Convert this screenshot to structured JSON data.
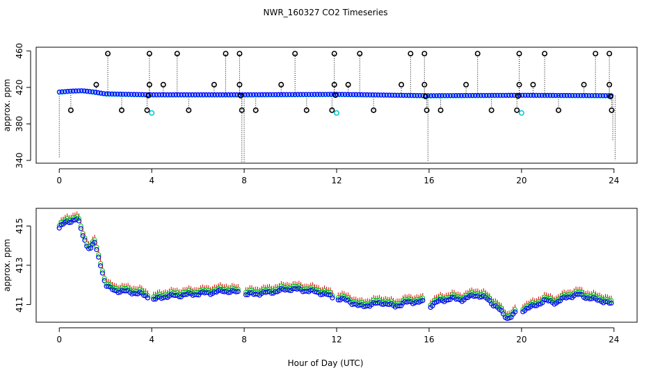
{
  "title": "NWR_160327  CO2 Timeseries",
  "xlabel": "Hour of Day (UTC)",
  "colors": {
    "axis": "#000000",
    "series_blue": "#0000ff",
    "series_cyan": "#00c8d0",
    "series_green": "#00c000",
    "series_red": "#e00000",
    "outlier": "#000000"
  },
  "chart_data": [
    {
      "type": "scatter",
      "title": "NWR_160327  CO2 Timeseries",
      "ylabel": "approx. ppm",
      "xlim": [
        -1,
        25
      ],
      "ylim": [
        337,
        464
      ],
      "xticks": [
        0,
        4,
        8,
        12,
        16,
        20,
        24
      ],
      "xtick_labels": [
        "0",
        "4",
        "8",
        "12",
        "16",
        "20",
        "24"
      ],
      "yticks": [
        340,
        380,
        420,
        460
      ],
      "ytick_labels": [
        "340",
        "380",
        "420",
        "460"
      ],
      "baseline_points": [
        [
          0,
          415
        ],
        [
          0.5,
          416
        ],
        [
          1,
          416.5
        ],
        [
          1.5,
          415
        ],
        [
          2,
          413
        ],
        [
          4,
          412
        ],
        [
          8,
          412
        ],
        [
          12,
          412.5
        ],
        [
          16,
          411
        ],
        [
          20,
          411.5
        ],
        [
          24,
          411
        ]
      ],
      "high_outliers_x": [
        2.1,
        3.9,
        5.1,
        7.2,
        7.8,
        10.2,
        11.9,
        13.0,
        15.2,
        15.8,
        18.1,
        19.9,
        21.0,
        23.2,
        23.8
      ],
      "high_outlier_value": 457,
      "mid_outliers_x": [
        1.6,
        3.9,
        4.5,
        6.7,
        7.8,
        9.6,
        11.9,
        12.5,
        14.8,
        15.8,
        17.6,
        19.9,
        20.5,
        22.7,
        23.8
      ],
      "mid_outlier_value": 423,
      "low_outliers_x": [
        0.5,
        2.7,
        3.8,
        5.6,
        7.9,
        8.5,
        10.7,
        11.8,
        13.6,
        15.9,
        16.5,
        18.7,
        19.8,
        21.6,
        23.9
      ],
      "low_outlier_value": 395,
      "cyan_low_x": [
        4.0,
        12.0,
        20.0
      ],
      "cyan_low_value": 392,
      "drops": [
        [
          0,
          342
        ],
        [
          7.9,
          338
        ],
        [
          8.0,
          338
        ],
        [
          15.95,
          338
        ],
        [
          23.95,
          362
        ],
        [
          24.05,
          340
        ]
      ]
    },
    {
      "type": "scatter",
      "ylabel": "approx. ppm",
      "xlim": [
        -1,
        25
      ],
      "ylim": [
        410.1,
        415.9
      ],
      "xticks": [
        0,
        4,
        8,
        12,
        16,
        20,
        24
      ],
      "xtick_labels": [
        "0",
        "4",
        "8",
        "12",
        "16",
        "20",
        "24"
      ],
      "yticks": [
        411,
        413,
        415
      ],
      "ytick_labels": [
        "411",
        "413",
        "415"
      ],
      "series": [
        {
          "name": "blue",
          "points": [
            [
              0,
              414.9
            ],
            [
              0.3,
              415.2
            ],
            [
              0.6,
              415.3
            ],
            [
              0.8,
              415.35
            ],
            [
              1.0,
              414.6
            ],
            [
              1.2,
              414.0
            ],
            [
              1.4,
              413.8
            ],
            [
              1.5,
              414.3
            ],
            [
              1.6,
              413.8
            ],
            [
              1.8,
              413.0
            ],
            [
              2.0,
              412.0
            ],
            [
              2.2,
              411.8
            ],
            [
              2.5,
              411.7
            ],
            [
              3.0,
              411.65
            ],
            [
              3.5,
              411.55
            ],
            [
              3.8,
              411.4
            ],
            [
              4.0,
              411.2
            ],
            [
              4.5,
              411.4
            ],
            [
              5.5,
              411.5
            ],
            [
              6.5,
              411.6
            ],
            [
              7.2,
              411.7
            ],
            [
              7.8,
              411.6
            ],
            [
              8.0,
              411.5
            ],
            [
              9.0,
              411.6
            ],
            [
              10.0,
              411.8
            ],
            [
              10.8,
              411.7
            ],
            [
              11.5,
              411.55
            ],
            [
              11.9,
              411.3
            ],
            [
              12.0,
              411.3
            ],
            [
              12.5,
              411.2
            ],
            [
              13.0,
              410.9
            ],
            [
              13.5,
              411.0
            ],
            [
              14.0,
              411.1
            ],
            [
              14.5,
              410.9
            ],
            [
              15.0,
              411.1
            ],
            [
              15.5,
              411.15
            ],
            [
              15.8,
              411.1
            ],
            [
              16.0,
              410.9
            ],
            [
              16.5,
              411.2
            ],
            [
              17.0,
              411.3
            ],
            [
              17.5,
              411.25
            ],
            [
              18.0,
              411.5
            ],
            [
              18.5,
              411.3
            ],
            [
              19.0,
              410.8
            ],
            [
              19.2,
              410.5
            ],
            [
              19.4,
              410.3
            ],
            [
              19.8,
              410.6
            ],
            [
              20.0,
              410.7
            ],
            [
              20.5,
              410.9
            ],
            [
              21.0,
              411.2
            ],
            [
              21.5,
              411.1
            ],
            [
              22.0,
              411.4
            ],
            [
              22.5,
              411.5
            ],
            [
              23.0,
              411.3
            ],
            [
              23.5,
              411.2
            ],
            [
              23.9,
              411.0
            ]
          ]
        },
        {
          "name": "green",
          "offset": 0.12
        },
        {
          "name": "red",
          "offset": 0.2
        }
      ]
    }
  ]
}
